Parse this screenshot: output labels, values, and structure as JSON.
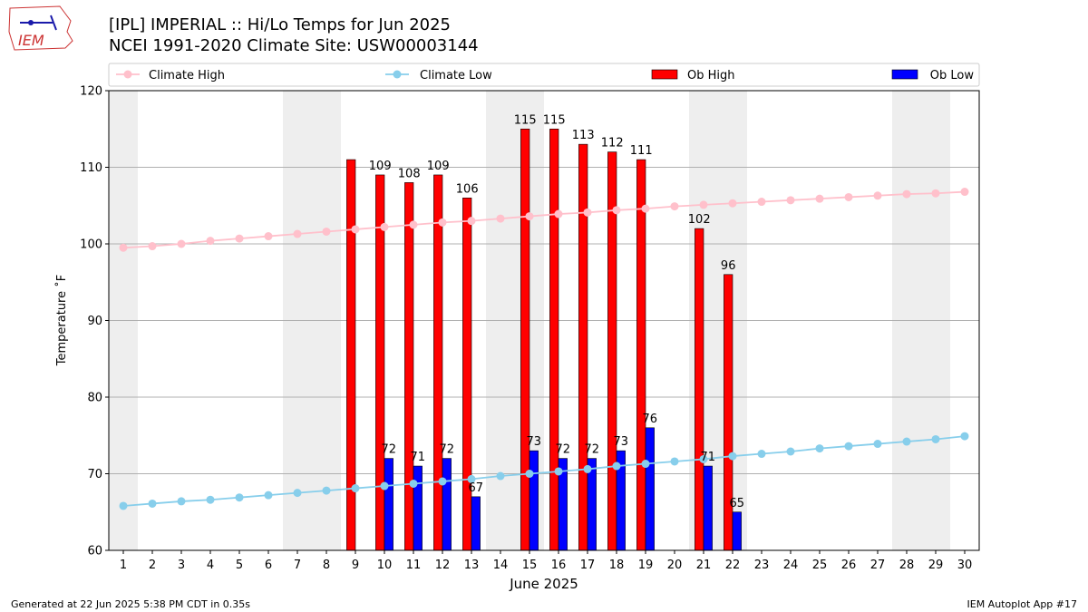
{
  "header": {
    "title_line1": "[IPL] IMPERIAL :: Hi/Lo Temps for Jun 2025",
    "title_line2": "NCEI 1991-2020 Climate Site: USW00003144",
    "logo_text": "IEM"
  },
  "footer": {
    "generated": "Generated at 22 Jun 2025 5:38 PM CDT in 0.35s",
    "app": "IEM Autoplot App #17"
  },
  "chart_data": {
    "type": "bar",
    "xlabel": "June 2025",
    "ylabel": "Temperature ˚F",
    "xlim": [
      0.5,
      30.5
    ],
    "ylim": [
      60,
      120
    ],
    "yticks": [
      60,
      70,
      80,
      90,
      100,
      110,
      120
    ],
    "x": [
      1,
      2,
      3,
      4,
      5,
      6,
      7,
      8,
      9,
      10,
      11,
      12,
      13,
      14,
      15,
      16,
      17,
      18,
      19,
      20,
      21,
      22,
      23,
      24,
      25,
      26,
      27,
      28,
      29,
      30
    ],
    "grid": "horizontal",
    "legend_placement": "top",
    "weekend_shading": [
      [
        1,
        1
      ],
      [
        7,
        8
      ],
      [
        14,
        15
      ],
      [
        21,
        22
      ],
      [
        28,
        29
      ]
    ],
    "legend": [
      {
        "name": "Climate High",
        "kind": "line",
        "color": "#ffc0cb"
      },
      {
        "name": "Climate Low",
        "kind": "line",
        "color": "#87ceeb"
      },
      {
        "name": "Ob High",
        "kind": "bar",
        "color": "#ff0000"
      },
      {
        "name": "Ob Low",
        "kind": "bar",
        "color": "#0000ff"
      }
    ],
    "climate_high": [
      99.5,
      99.7,
      100.0,
      100.4,
      100.7,
      101.0,
      101.3,
      101.6,
      101.9,
      102.2,
      102.5,
      102.8,
      103.0,
      103.3,
      103.6,
      103.9,
      104.1,
      104.4,
      104.6,
      104.9,
      105.1,
      105.3,
      105.5,
      105.7,
      105.9,
      106.1,
      106.3,
      106.5,
      106.6,
      106.8
    ],
    "climate_low": [
      65.8,
      66.1,
      66.4,
      66.6,
      66.9,
      67.2,
      67.5,
      67.8,
      68.1,
      68.4,
      68.7,
      69.0,
      69.3,
      69.7,
      70.0,
      70.3,
      70.6,
      71.0,
      71.3,
      71.6,
      71.9,
      72.3,
      72.6,
      72.9,
      73.3,
      73.6,
      73.9,
      74.2,
      74.5,
      74.9
    ],
    "ob_high": [
      null,
      null,
      null,
      null,
      null,
      null,
      null,
      null,
      111,
      109,
      108,
      109,
      106,
      null,
      115,
      115,
      113,
      112,
      111,
      null,
      102,
      96,
      null,
      null,
      null,
      null,
      null,
      null,
      null,
      null
    ],
    "ob_low": [
      null,
      null,
      null,
      null,
      null,
      null,
      null,
      null,
      null,
      72,
      71,
      72,
      67,
      null,
      73,
      72,
      72,
      73,
      76,
      null,
      71,
      65,
      null,
      null,
      null,
      null,
      null,
      null,
      null,
      null
    ],
    "ob_high_labels": [
      null,
      null,
      null,
      null,
      null,
      null,
      null,
      null,
      null,
      "109",
      "108",
      "109",
      "106",
      null,
      "115",
      "115",
      "113",
      "112",
      "111",
      null,
      "102",
      "96",
      null,
      null,
      null,
      null,
      null,
      null,
      null,
      null
    ],
    "ob_low_labels": [
      null,
      null,
      null,
      null,
      null,
      null,
      null,
      null,
      null,
      "72",
      "71",
      "72",
      "67",
      null,
      "73",
      "72",
      "72",
      "73",
      "76",
      null,
      "71",
      "65",
      null,
      null,
      null,
      null,
      null,
      null,
      null,
      null
    ]
  }
}
